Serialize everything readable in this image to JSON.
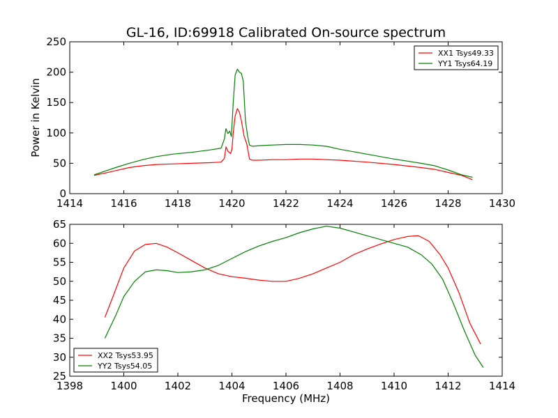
{
  "chart_data": [
    {
      "type": "line",
      "title": "GL-16, ID:69918 Calibrated On-source spectrum",
      "xlabel": "",
      "ylabel": "Power in Kelvin",
      "xlim": [
        1414,
        1430
      ],
      "ylim": [
        0,
        250
      ],
      "xticks": [
        1414,
        1416,
        1418,
        1420,
        1422,
        1424,
        1426,
        1428,
        1430
      ],
      "yticks": [
        0,
        50,
        100,
        150,
        200,
        250
      ],
      "legend_position": "top-right",
      "series": [
        {
          "name": "XX1 Tsys49.33",
          "color": "#ff0000",
          "x": [
            1414.9,
            1415.3,
            1415.7,
            1416.2,
            1416.7,
            1417.2,
            1417.8,
            1418.5,
            1419.2,
            1419.6,
            1419.72,
            1419.78,
            1419.85,
            1419.95,
            1420.0,
            1420.05,
            1420.12,
            1420.2,
            1420.28,
            1420.35,
            1420.45,
            1420.55,
            1420.65,
            1420.75,
            1421.0,
            1421.5,
            1422.0,
            1422.5,
            1423.0,
            1423.5,
            1424.0,
            1425.0,
            1426.0,
            1427.0,
            1427.5,
            1428.0,
            1428.5,
            1428.9
          ],
          "y": [
            30,
            34,
            38,
            43,
            46,
            48,
            49,
            50,
            51,
            52,
            58,
            77,
            70,
            66,
            73,
            100,
            128,
            140,
            134,
            120,
            95,
            82,
            57,
            55,
            55,
            56,
            56,
            57,
            57,
            56,
            55,
            52,
            48,
            43,
            40,
            35,
            30,
            23
          ]
        },
        {
          "name": "YY1 Tsys64.19",
          "color": "#008000",
          "x": [
            1414.9,
            1415.3,
            1415.7,
            1416.2,
            1416.7,
            1417.2,
            1417.8,
            1418.5,
            1419.2,
            1419.6,
            1419.72,
            1419.78,
            1419.85,
            1419.92,
            1419.98,
            1420.05,
            1420.12,
            1420.2,
            1420.28,
            1420.35,
            1420.42,
            1420.5,
            1420.58,
            1420.65,
            1420.75,
            1421.0,
            1421.5,
            1422.0,
            1422.5,
            1423.0,
            1423.5,
            1424.0,
            1425.0,
            1426.0,
            1427.0,
            1427.5,
            1428.0,
            1428.5,
            1428.9
          ],
          "y": [
            31,
            37,
            43,
            50,
            56,
            61,
            65,
            68,
            72,
            75,
            90,
            107,
            99,
            103,
            94,
            150,
            195,
            205,
            200,
            198,
            185,
            120,
            95,
            80,
            78,
            79,
            80,
            81,
            81,
            80,
            78,
            73,
            65,
            57,
            50,
            46,
            39,
            31,
            27
          ]
        }
      ]
    },
    {
      "type": "line",
      "title": "",
      "xlabel": "Frequency (MHz)",
      "ylabel": "",
      "xlim": [
        1398,
        1414
      ],
      "ylim": [
        25,
        65
      ],
      "xticks": [
        1398,
        1400,
        1402,
        1404,
        1406,
        1408,
        1410,
        1412,
        1414
      ],
      "yticks": [
        25,
        30,
        35,
        40,
        45,
        50,
        55,
        60,
        65
      ],
      "legend_position": "bottom-left",
      "series": [
        {
          "name": "XX2 Tsys53.95",
          "color": "#ff0000",
          "x": [
            1399.3,
            1399.6,
            1400.0,
            1400.4,
            1400.8,
            1401.2,
            1401.6,
            1402.0,
            1402.5,
            1403.0,
            1403.5,
            1404.0,
            1404.5,
            1405.0,
            1405.5,
            1406.0,
            1406.5,
            1407.0,
            1407.5,
            1408.0,
            1408.5,
            1409.0,
            1409.5,
            1410.0,
            1410.5,
            1410.9,
            1411.3,
            1411.7,
            1412.0,
            1412.4,
            1412.8,
            1413.2
          ],
          "y": [
            40.5,
            46,
            53.5,
            58,
            59.7,
            60,
            59,
            57.5,
            55.5,
            53.5,
            52,
            51.2,
            50.8,
            50.3,
            50,
            50,
            50.8,
            52,
            53.5,
            55,
            57,
            58.5,
            59.8,
            61,
            61.8,
            62,
            60.5,
            57,
            53.5,
            47,
            39,
            33.5
          ]
        },
        {
          "name": "YY2 Tsys54.05",
          "color": "#008000",
          "x": [
            1399.3,
            1399.7,
            1400.0,
            1400.4,
            1400.8,
            1401.2,
            1401.6,
            1402.0,
            1402.5,
            1403.0,
            1403.5,
            1404.0,
            1404.5,
            1405.0,
            1405.5,
            1406.0,
            1406.5,
            1407.0,
            1407.5,
            1408.0,
            1408.5,
            1409.0,
            1409.5,
            1410.0,
            1410.5,
            1411.0,
            1411.4,
            1411.8,
            1412.2,
            1412.6,
            1413.0,
            1413.3
          ],
          "y": [
            35,
            41,
            46,
            50,
            52.5,
            53,
            52.8,
            52.3,
            52.5,
            53,
            54.2,
            56,
            57.8,
            59.3,
            60.5,
            61.5,
            62.8,
            63.8,
            64.5,
            64,
            63,
            62,
            61,
            60,
            59,
            57,
            54.5,
            50.5,
            44,
            37,
            30.5,
            27.3
          ]
        }
      ]
    }
  ]
}
